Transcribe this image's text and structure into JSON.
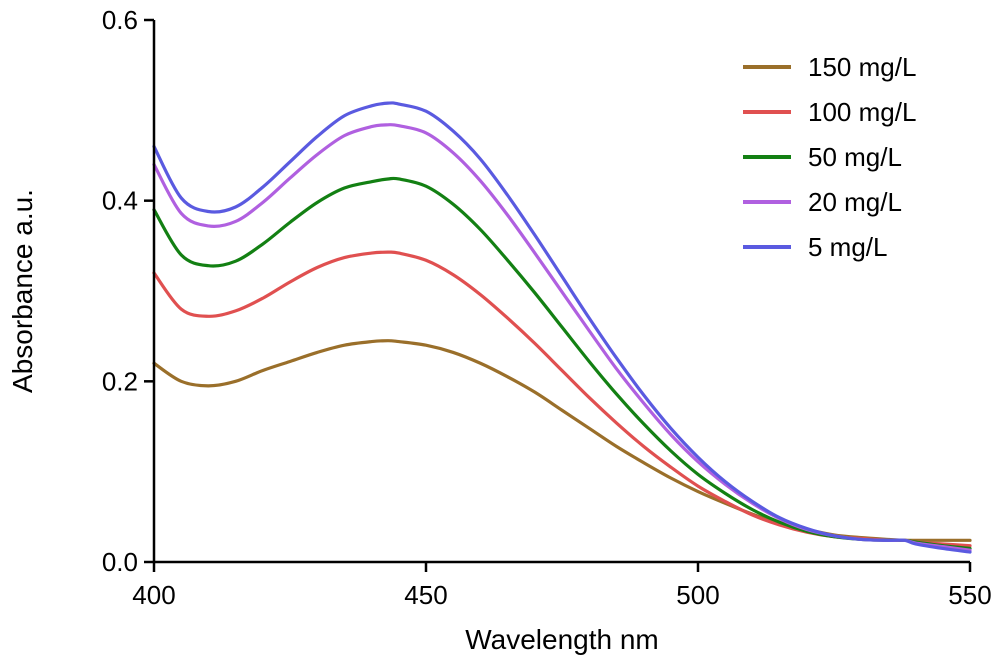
{
  "chart_data": {
    "type": "line",
    "title": "",
    "xlabel": "Wavelength nm",
    "ylabel": "Absorbance a.u.",
    "xlim": [
      400,
      550
    ],
    "ylim": [
      0.0,
      0.6
    ],
    "x_ticks": [
      400,
      450,
      500,
      550
    ],
    "x_tick_labels": [
      "400",
      "450",
      "500",
      "550"
    ],
    "y_ticks": [
      0.0,
      0.2,
      0.4,
      0.6
    ],
    "y_tick_labels": [
      "0.0",
      "0.2",
      "0.4",
      "0.6"
    ],
    "grid": false,
    "legend_position": "top-right",
    "x": [
      400,
      405,
      410,
      415,
      420,
      425,
      430,
      435,
      440,
      443,
      445,
      450,
      455,
      460,
      465,
      470,
      475,
      480,
      485,
      490,
      495,
      500,
      505,
      510,
      515,
      520,
      525,
      530,
      535,
      538,
      540,
      545,
      550
    ],
    "series": [
      {
        "name": "150 mg/L",
        "color": "#9a6f2a",
        "values": [
          0.22,
          0.2,
          0.195,
          0.2,
          0.212,
          0.222,
          0.232,
          0.24,
          0.244,
          0.245,
          0.244,
          0.24,
          0.232,
          0.22,
          0.205,
          0.188,
          0.168,
          0.148,
          0.128,
          0.11,
          0.093,
          0.078,
          0.065,
          0.053,
          0.043,
          0.036,
          0.03,
          0.027,
          0.025,
          0.024,
          0.024,
          0.024,
          0.024
        ]
      },
      {
        "name": "100 mg/L",
        "color": "#e05050",
        "values": [
          0.32,
          0.28,
          0.272,
          0.278,
          0.292,
          0.31,
          0.326,
          0.337,
          0.342,
          0.343,
          0.342,
          0.334,
          0.318,
          0.296,
          0.27,
          0.242,
          0.212,
          0.182,
          0.154,
          0.128,
          0.105,
          0.084,
          0.067,
          0.052,
          0.041,
          0.033,
          0.028,
          0.026,
          0.024,
          0.024,
          0.022,
          0.02,
          0.018
        ]
      },
      {
        "name": "50 mg/L",
        "color": "#138013",
        "values": [
          0.39,
          0.34,
          0.328,
          0.333,
          0.352,
          0.376,
          0.398,
          0.414,
          0.421,
          0.424,
          0.424,
          0.416,
          0.396,
          0.368,
          0.334,
          0.298,
          0.26,
          0.222,
          0.186,
          0.153,
          0.123,
          0.097,
          0.076,
          0.058,
          0.044,
          0.034,
          0.028,
          0.025,
          0.024,
          0.024,
          0.022,
          0.018,
          0.015
        ]
      },
      {
        "name": "20 mg/L",
        "color": "#b060e0",
        "values": [
          0.44,
          0.386,
          0.372,
          0.377,
          0.398,
          0.425,
          0.451,
          0.472,
          0.482,
          0.484,
          0.483,
          0.475,
          0.453,
          0.422,
          0.384,
          0.342,
          0.299,
          0.256,
          0.214,
          0.176,
          0.141,
          0.111,
          0.086,
          0.065,
          0.048,
          0.036,
          0.029,
          0.025,
          0.024,
          0.024,
          0.021,
          0.017,
          0.013
        ]
      },
      {
        "name": "5 mg/L",
        "color": "#5a5ae0",
        "values": [
          0.46,
          0.403,
          0.388,
          0.393,
          0.415,
          0.443,
          0.471,
          0.494,
          0.505,
          0.508,
          0.507,
          0.499,
          0.477,
          0.446,
          0.406,
          0.362,
          0.316,
          0.27,
          0.226,
          0.185,
          0.148,
          0.116,
          0.089,
          0.067,
          0.049,
          0.037,
          0.029,
          0.025,
          0.024,
          0.024,
          0.02,
          0.015,
          0.011
        ]
      }
    ]
  }
}
